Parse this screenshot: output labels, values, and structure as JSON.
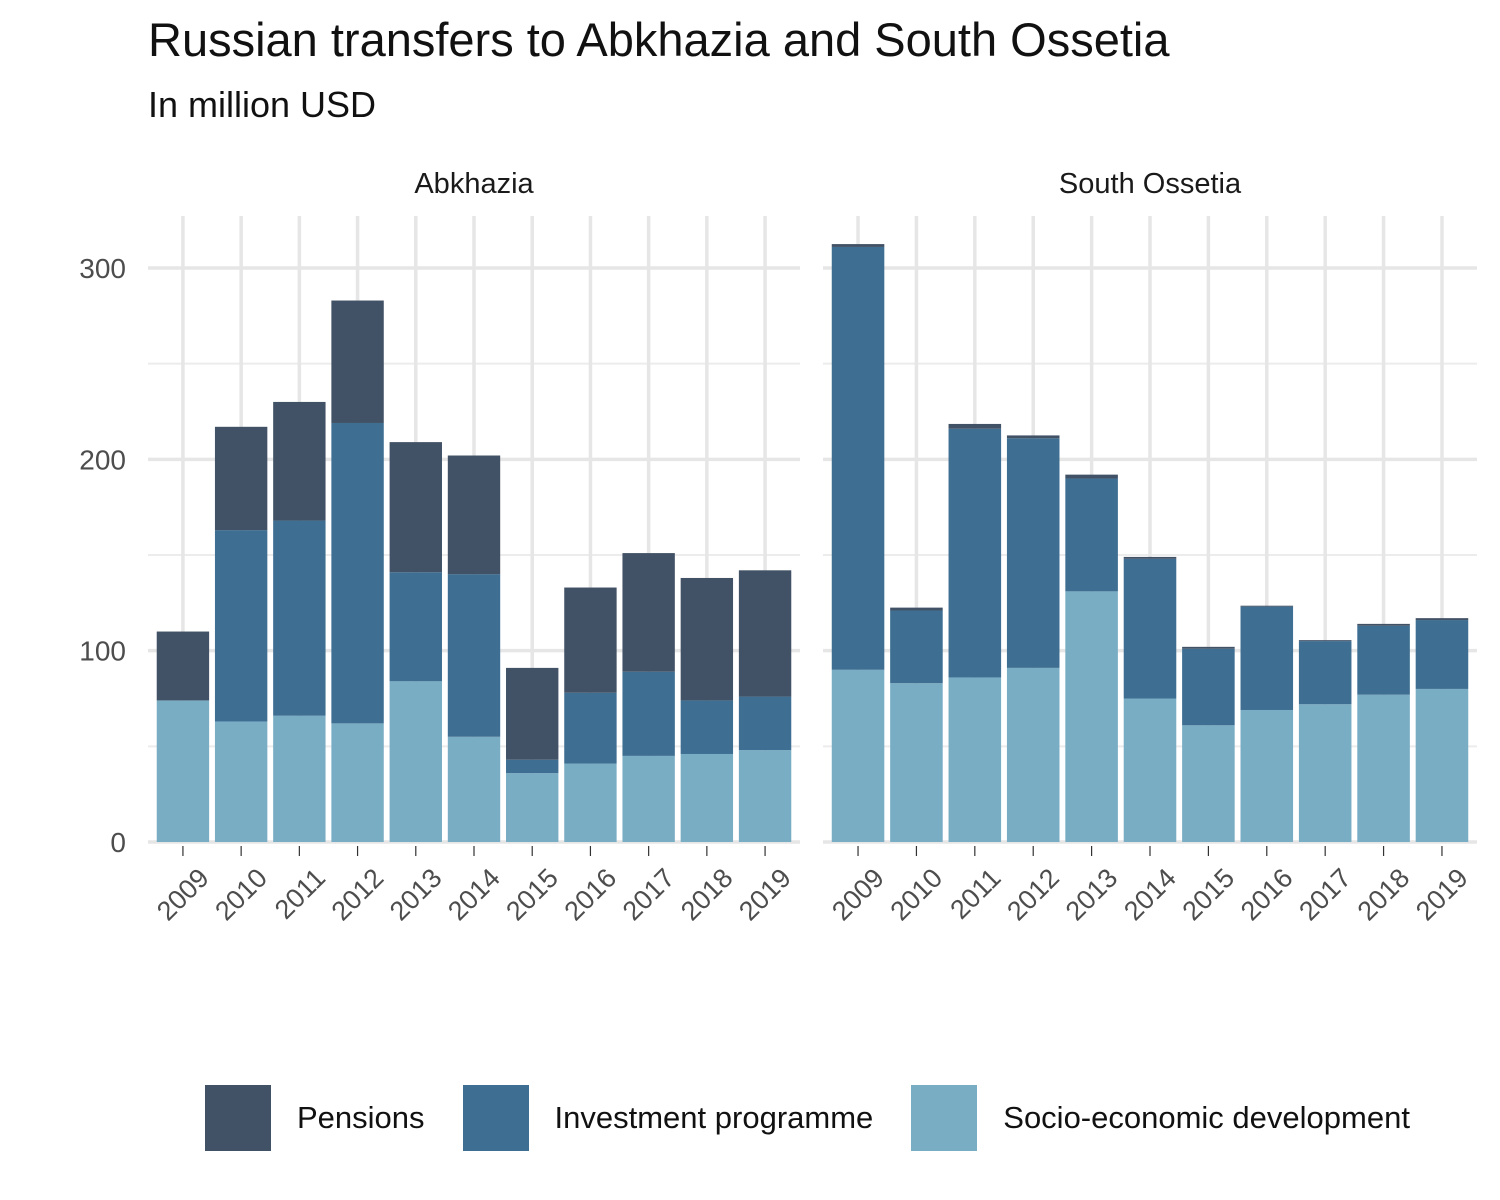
{
  "title": "Russian transfers to Abkhazia and South Ossetia",
  "subtitle": "In million USD",
  "legend": [
    {
      "name": "Pensions",
      "color": "#425266"
    },
    {
      "name": "Investment programme",
      "color": "#3e6e92"
    },
    {
      "name": "Socio-economic development",
      "color": "#79adc4"
    }
  ],
  "chart_data": {
    "type": "bar",
    "stacked": true,
    "grid": true,
    "legend_position": "bottom",
    "ylim": [
      0,
      300
    ],
    "yticks": [
      0,
      100,
      200,
      300
    ],
    "categories": [
      "2009",
      "2010",
      "2011",
      "2012",
      "2013",
      "2014",
      "2015",
      "2016",
      "2017",
      "2018",
      "2019"
    ],
    "panels": [
      {
        "name": "Abkhazia",
        "series": [
          {
            "name": "Socio-economic development",
            "values": [
              74,
              63,
              66,
              62,
              84,
              55,
              36,
              41,
              45,
              46,
              48
            ]
          },
          {
            "name": "Investment programme",
            "values": [
              0,
              100,
              102,
              157,
              57,
              85,
              7,
              37,
              44,
              28,
              28
            ]
          },
          {
            "name": "Pensions",
            "values": [
              36,
              54,
              62,
              64,
              68,
              62,
              48,
              55,
              62,
              64,
              66
            ]
          }
        ]
      },
      {
        "name": "South Ossetia",
        "series": [
          {
            "name": "Socio-economic development",
            "values": [
              90,
              83,
              86,
              91,
              131,
              75,
              61,
              69,
              72,
              77,
              80
            ]
          },
          {
            "name": "Investment programme",
            "values": [
              221,
              38,
              130,
              120,
              59,
              73,
              40,
              54,
              33,
              36,
              36
            ]
          },
          {
            "name": "Pensions",
            "values": [
              1.5,
              1.5,
              2.5,
              1.5,
              2,
              1,
              1,
              0.5,
              0.5,
              1,
              1
            ]
          }
        ]
      }
    ]
  }
}
